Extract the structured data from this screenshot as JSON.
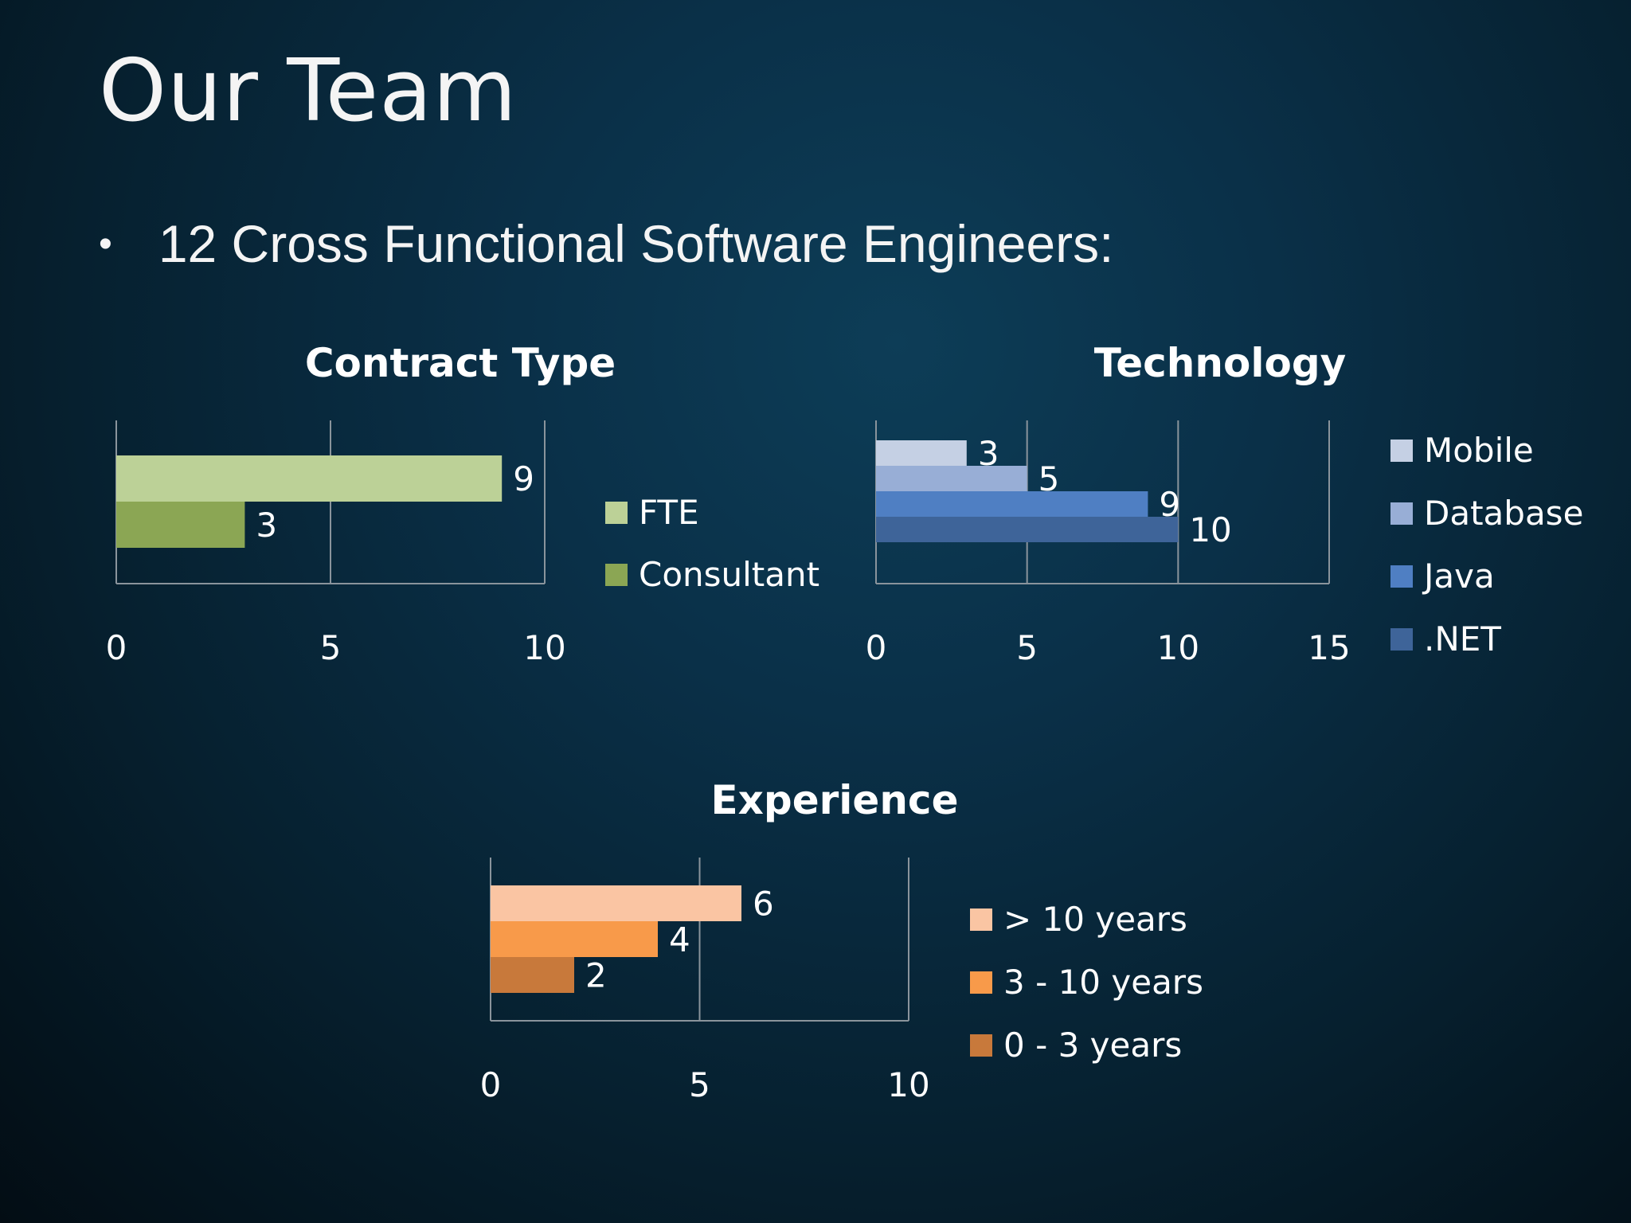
{
  "slide": {
    "title": "Our Team",
    "bullet": "12 Cross Functional Software Engineers:"
  },
  "chart_data": [
    {
      "type": "bar",
      "orientation": "horizontal",
      "title": "Contract Type",
      "series": [
        {
          "name": "FTE",
          "values": [
            9
          ],
          "color": "#bcd197"
        },
        {
          "name": "Consultant",
          "values": [
            3
          ],
          "color": "#8ba654"
        }
      ],
      "xlim": [
        0,
        10
      ],
      "ticks": [
        0,
        5,
        10
      ],
      "grid": true,
      "legend": "right"
    },
    {
      "type": "bar",
      "orientation": "horizontal",
      "title": "Technology",
      "series": [
        {
          "name": "Mobile",
          "values": [
            3
          ],
          "color": "#c5d0e4"
        },
        {
          "name": "Database",
          "values": [
            5
          ],
          "color": "#98aed6"
        },
        {
          "name": "Java",
          "values": [
            9
          ],
          "color": "#4f7fc3"
        },
        {
          "name": ".NET",
          "values": [
            10
          ],
          "color": "#3e6499"
        }
      ],
      "xlim": [
        0,
        15
      ],
      "ticks": [
        0,
        5,
        10,
        15
      ],
      "grid": true,
      "legend": "right"
    },
    {
      "type": "bar",
      "orientation": "horizontal",
      "title": "Experience",
      "series": [
        {
          "name": "> 10 years",
          "values": [
            6
          ],
          "color": "#fac5a3"
        },
        {
          "name": "3 - 10 years",
          "values": [
            4
          ],
          "color": "#f89a4a"
        },
        {
          "name": "0 - 3 years",
          "values": [
            2
          ],
          "color": "#c8793b"
        }
      ],
      "xlim": [
        0,
        10
      ],
      "ticks": [
        0,
        5,
        10
      ],
      "grid": true,
      "legend": "right"
    }
  ]
}
